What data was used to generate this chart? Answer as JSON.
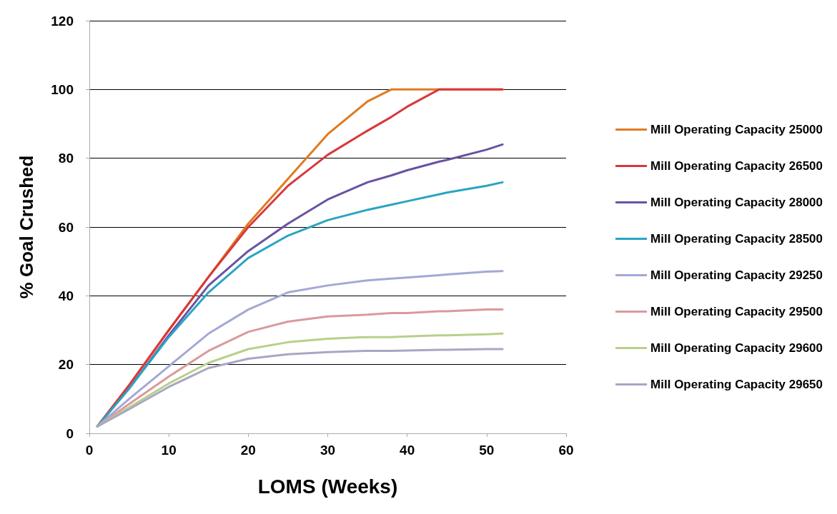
{
  "chart_data": {
    "type": "line",
    "xlabel": "LOMS (Weeks)",
    "ylabel": "% Goal Crushed",
    "x": [
      1,
      5,
      10,
      15,
      20,
      25,
      30,
      35,
      38,
      40,
      44,
      45,
      50,
      52
    ],
    "xlim": [
      0,
      60
    ],
    "xticks": [
      0,
      10,
      20,
      30,
      40,
      50,
      60
    ],
    "ylim": [
      0,
      120
    ],
    "yticks": [
      0,
      20,
      40,
      60,
      80,
      100,
      120
    ],
    "grid": "y",
    "legend": "right",
    "marker": "none",
    "line_style": "solid",
    "series": [
      {
        "name": "Mill Operating Capacity 25000",
        "color": "#e07b22",
        "values": [
          2,
          14,
          30,
          45.5,
          61,
          74,
          87,
          96.5,
          100,
          100,
          100,
          100,
          100,
          100
        ]
      },
      {
        "name": "Mill Operating Capacity 26500",
        "color": "#d8383b",
        "values": [
          2,
          14,
          30,
          45.5,
          60,
          72,
          81,
          88,
          92,
          95,
          100,
          100,
          100,
          100
        ]
      },
      {
        "name": "Mill Operating Capacity 28000",
        "color": "#6a52a3",
        "values": [
          2,
          13,
          28.5,
          43,
          53,
          61,
          68,
          73,
          75,
          76.5,
          79,
          79.5,
          82.5,
          84
        ]
      },
      {
        "name": "Mill Operating Capacity 28500",
        "color": "#2aa4c2",
        "values": [
          2,
          13,
          28,
          41,
          51,
          57.5,
          62,
          65,
          66.5,
          67.5,
          69.5,
          70,
          72,
          73
        ]
      },
      {
        "name": "Mill Operating Capacity 29250",
        "color": "#a3a8d6",
        "values": [
          2,
          10,
          19.5,
          29,
          36,
          41,
          43,
          44.5,
          45,
          45.3,
          46,
          46.2,
          47,
          47.2
        ]
      },
      {
        "name": "Mill Operating Capacity 29500",
        "color": "#d99a9c",
        "values": [
          2,
          8.5,
          16.5,
          24,
          29.5,
          32.5,
          34,
          34.5,
          35,
          35,
          35.5,
          35.5,
          36,
          36
        ]
      },
      {
        "name": "Mill Operating Capacity 29600",
        "color": "#b8d08a",
        "values": [
          2,
          7.5,
          14.5,
          20.5,
          24.5,
          26.5,
          27.5,
          28,
          28,
          28.2,
          28.5,
          28.5,
          28.8,
          29
        ]
      },
      {
        "name": "Mill Operating Capacity 29650",
        "color": "#a9a6c4",
        "values": [
          2,
          7,
          13.5,
          19,
          21.7,
          23,
          23.6,
          24,
          24,
          24.1,
          24.3,
          24.3,
          24.5,
          24.5
        ]
      }
    ]
  }
}
